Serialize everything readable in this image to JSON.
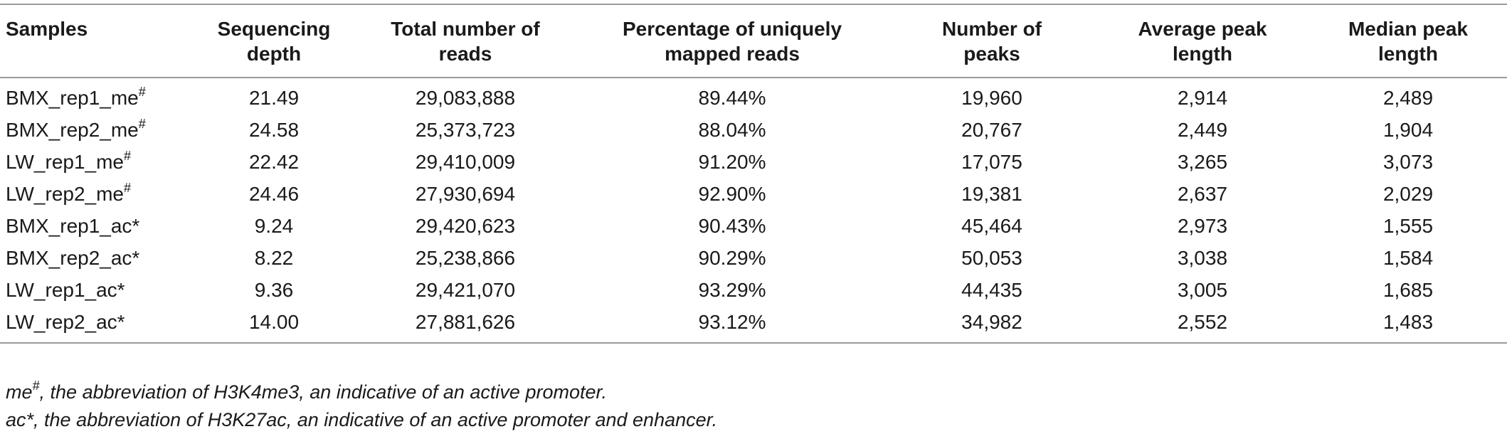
{
  "table": {
    "headers": [
      [
        "Samples"
      ],
      [
        "Sequencing",
        "depth"
      ],
      [
        "Total number of",
        "reads"
      ],
      [
        "Percentage of uniquely",
        "mapped reads"
      ],
      [
        "Number of",
        "peaks"
      ],
      [
        "Average peak",
        "length"
      ],
      [
        "Median peak",
        "length"
      ]
    ],
    "rows": [
      {
        "sample": "BMX_rep1_me",
        "mark": "#",
        "depth": "21.49",
        "reads": "29,083,888",
        "pct": "89.44%",
        "peaks": "19,960",
        "avg": "2,914",
        "median": "2,489"
      },
      {
        "sample": "BMX_rep2_me",
        "mark": "#",
        "depth": "24.58",
        "reads": "25,373,723",
        "pct": "88.04%",
        "peaks": "20,767",
        "avg": "2,449",
        "median": "1,904"
      },
      {
        "sample": "LW_rep1_me",
        "mark": "#",
        "depth": "22.42",
        "reads": "29,410,009",
        "pct": "91.20%",
        "peaks": "17,075",
        "avg": "3,265",
        "median": "3,073"
      },
      {
        "sample": "LW_rep2_me",
        "mark": "#",
        "depth": "24.46",
        "reads": "27,930,694",
        "pct": "92.90%",
        "peaks": "19,381",
        "avg": "2,637",
        "median": "2,029"
      },
      {
        "sample": "BMX_rep1_ac*",
        "mark": "",
        "depth": "9.24",
        "reads": "29,420,623",
        "pct": "90.43%",
        "peaks": "45,464",
        "avg": "2,973",
        "median": "1,555"
      },
      {
        "sample": "BMX_rep2_ac*",
        "mark": "",
        "depth": "8.22",
        "reads": "25,238,866",
        "pct": "90.29%",
        "peaks": "50,053",
        "avg": "3,038",
        "median": "1,584"
      },
      {
        "sample": "LW_rep1_ac*",
        "mark": "",
        "depth": "9.36",
        "reads": "29,421,070",
        "pct": "93.29%",
        "peaks": "44,435",
        "avg": "3,005",
        "median": "1,685"
      },
      {
        "sample": "LW_rep2_ac*",
        "mark": "",
        "depth": "14.00",
        "reads": "27,881,626",
        "pct": "93.12%",
        "peaks": "34,982",
        "avg": "2,552",
        "median": "1,483"
      }
    ]
  },
  "footnotes": {
    "me": {
      "term": "me",
      "mark": "#",
      "text": ", the abbreviation of H3K4me3, an indicative of an active promoter."
    },
    "ac": {
      "term": "ac*",
      "text": ", the abbreviation of H3K27ac, an indicative of an active promoter and enhancer."
    }
  }
}
